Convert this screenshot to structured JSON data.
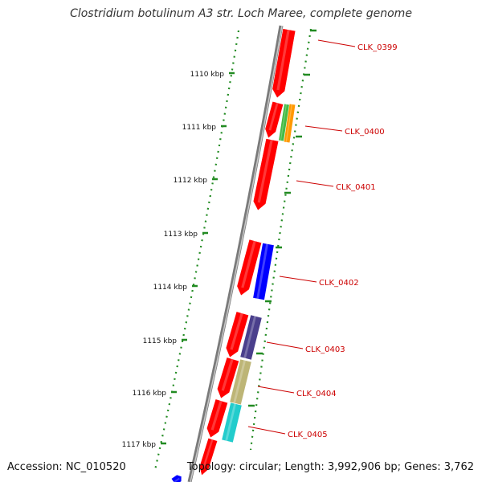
{
  "title": "Clostridium botulinum A3 str. Loch Maree, complete genome",
  "footer": {
    "accession": "Accession: NC_010520",
    "topology": "Topology: circular; Length: 3,992,906 bp; Genes: 3,762"
  },
  "colors": {
    "backbone": "#808080",
    "tick": "#2e8b2e",
    "label": "#cc0000",
    "forward_gene": "#ff0000"
  },
  "ticks": [
    "1110 kbp",
    "1111 kbp",
    "1112 kbp",
    "1113 kbp",
    "1114 kbp",
    "1115 kbp",
    "1116 kbp",
    "1117 kbp"
  ],
  "genes": [
    {
      "label": "CLK_0399",
      "feature_color": "#ff0000"
    },
    {
      "label": "CLK_0400",
      "feature_color": "#44bb44",
      "second_color": "#ff9900"
    },
    {
      "label": "CLK_0401",
      "feature_color": "#ff0000"
    },
    {
      "label": "CLK_0402",
      "feature_color": "#0000ff"
    },
    {
      "label": "CLK_0403",
      "feature_color": "#4a3f8c"
    },
    {
      "label": "CLK_0404",
      "feature_color": "#bdb576"
    },
    {
      "label": "CLK_0405",
      "feature_color": "#22cccc"
    }
  ]
}
